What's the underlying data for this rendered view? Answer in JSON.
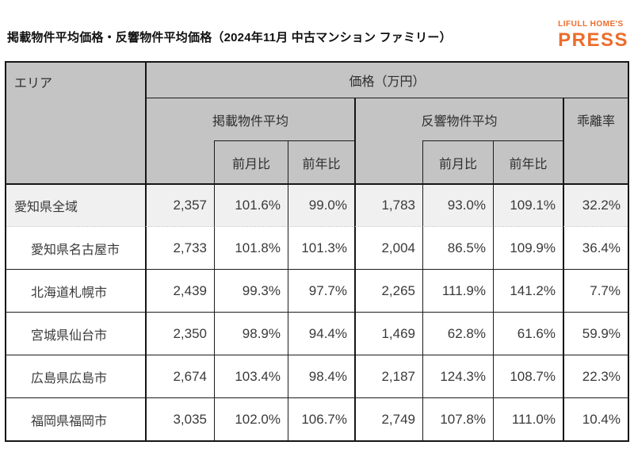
{
  "page": {
    "title": "掲載物件平均価格・反響物件平均価格（2024年11月 中古マンション ファミリー）",
    "logo": {
      "line1": "LIFULL HOME'S",
      "line2": "PRESS",
      "color": "#ed6c2b"
    }
  },
  "colors": {
    "logo_orange": "#ed6c2b",
    "header_gray": "#c4c4c4",
    "highlight_row_gray": "#f0f0f0",
    "border_black": "#161616"
  },
  "table": {
    "headers": {
      "area": "エリア",
      "price_unit": "価格（万円）",
      "listed_avg": "掲載物件平均",
      "response_avg": "反響物件平均",
      "divergence": "乖離率",
      "mom": "前月比",
      "yoy": "前年比"
    },
    "rows": [
      {
        "area": "愛知県全域",
        "listed": "2,357",
        "listed_mom": "101.6%",
        "listed_yoy": "99.0%",
        "response": "1,783",
        "response_mom": "93.0%",
        "response_yoy": "109.1%",
        "divergence": "32.2%"
      },
      {
        "area": "愛知県名古屋市",
        "listed": "2,733",
        "listed_mom": "101.8%",
        "listed_yoy": "101.3%",
        "response": "2,004",
        "response_mom": "86.5%",
        "response_yoy": "109.9%",
        "divergence": "36.4%"
      },
      {
        "area": "北海道札幌市",
        "listed": "2,439",
        "listed_mom": "99.3%",
        "listed_yoy": "97.7%",
        "response": "2,265",
        "response_mom": "111.9%",
        "response_yoy": "141.2%",
        "divergence": "7.7%"
      },
      {
        "area": "宮城県仙台市",
        "listed": "2,350",
        "listed_mom": "98.9%",
        "listed_yoy": "94.4%",
        "response": "1,469",
        "response_mom": "62.8%",
        "response_yoy": "61.6%",
        "divergence": "59.9%"
      },
      {
        "area": "広島県広島市",
        "listed": "2,674",
        "listed_mom": "103.4%",
        "listed_yoy": "98.4%",
        "response": "2,187",
        "response_mom": "124.3%",
        "response_yoy": "108.7%",
        "divergence": "22.3%"
      },
      {
        "area": "福岡県福岡市",
        "listed": "3,035",
        "listed_mom": "102.0%",
        "listed_yoy": "106.7%",
        "response": "2,749",
        "response_mom": "107.8%",
        "response_yoy": "111.0%",
        "divergence": "10.4%"
      }
    ]
  },
  "chart_data": {
    "type": "table",
    "title": "掲載物件平均価格・反響物件平均価格（2024年11月 中古マンション ファミリー）",
    "unit": "価格（万円）",
    "columns": [
      "エリア",
      "掲載物件平均",
      "掲載物件平均 前月比",
      "掲載物件平均 前年比",
      "反響物件平均",
      "反響物件平均 前月比",
      "反響物件平均 前年比",
      "乖離率"
    ],
    "rows": [
      [
        "愛知県全域",
        2357,
        "101.6%",
        "99.0%",
        1783,
        "93.0%",
        "109.1%",
        "32.2%"
      ],
      [
        "愛知県名古屋市",
        2733,
        "101.8%",
        "101.3%",
        2004,
        "86.5%",
        "109.9%",
        "36.4%"
      ],
      [
        "北海道札幌市",
        2439,
        "99.3%",
        "97.7%",
        2265,
        "111.9%",
        "141.2%",
        "7.7%"
      ],
      [
        "宮城県仙台市",
        2350,
        "98.9%",
        "94.4%",
        1469,
        "62.8%",
        "61.6%",
        "59.9%"
      ],
      [
        "広島県広島市",
        2674,
        "103.4%",
        "98.4%",
        2187,
        "124.3%",
        "108.7%",
        "22.3%"
      ],
      [
        "福岡県福岡市",
        3035,
        "102.0%",
        "106.7%",
        2749,
        "107.8%",
        "111.0%",
        "10.4%"
      ]
    ]
  }
}
